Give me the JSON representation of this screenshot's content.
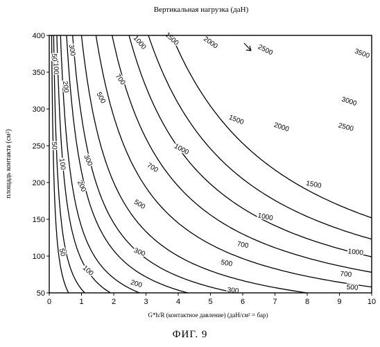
{
  "figure_caption": "ФИГ. 9",
  "chart_data": {
    "type": "line",
    "title": "Вертикальная нагрузка (даН)",
    "xlabel": "G*h/R (контактное давление)  (даН/см² = бар)",
    "ylabel": "площадь контакта (см²)",
    "xlim": [
      0,
      10
    ],
    "ylim": [
      50,
      400
    ],
    "x_ticks": [
      "0",
      "1",
      "2",
      "3",
      "4",
      "5",
      "6",
      "7",
      "8",
      "9",
      "10"
    ],
    "y_ticks": [
      "50",
      "100",
      "150",
      "200",
      "250",
      "300",
      "350",
      "400"
    ],
    "grid": false,
    "legend": "none",
    "series": [
      {
        "name": "50",
        "label_positions": [
          [
            0.15,
            370
          ],
          [
            0.15,
            250
          ],
          [
            0.4,
            105
          ]
        ]
      },
      {
        "name": "100",
        "label_positions": [
          [
            0.2,
            355
          ],
          [
            0.4,
            225
          ],
          [
            1.2,
            80
          ]
        ]
      },
      {
        "name": "200",
        "label_positions": [
          [
            0.5,
            330
          ],
          [
            1.0,
            195
          ],
          [
            2.7,
            62
          ]
        ]
      },
      {
        "name": "300",
        "label_positions": [
          [
            0.7,
            380
          ],
          [
            1.2,
            230
          ],
          [
            2.8,
            105
          ],
          [
            5.7,
            53
          ]
        ]
      },
      {
        "name": "500",
        "label_positions": [
          [
            1.6,
            315
          ],
          [
            2.8,
            170
          ],
          [
            5.5,
            90
          ],
          [
            9.4,
            57
          ]
        ]
      },
      {
        "name": "700",
        "label_positions": [
          [
            2.2,
            340
          ],
          [
            3.2,
            220
          ],
          [
            6.0,
            115
          ],
          [
            9.2,
            75
          ]
        ]
      },
      {
        "name": "1000",
        "label_positions": [
          [
            2.8,
            390
          ],
          [
            4.1,
            245
          ],
          [
            6.7,
            153
          ],
          [
            9.5,
            105
          ]
        ]
      },
      {
        "name": "1500",
        "label_positions": [
          [
            3.8,
            395
          ],
          [
            5.8,
            285
          ],
          [
            8.2,
            197
          ]
        ]
      },
      {
        "name": "2000",
        "label_positions": [
          [
            5.0,
            390
          ],
          [
            7.2,
            275
          ]
        ]
      },
      {
        "name": "2500",
        "label_positions": [
          [
            6.7,
            380
          ],
          [
            9.2,
            275
          ]
        ]
      },
      {
        "name": "3000",
        "label_positions": [
          [
            9.3,
            310
          ]
        ]
      },
      {
        "name": "3500",
        "label_positions": [
          [
            9.7,
            375
          ]
        ]
      }
    ]
  }
}
